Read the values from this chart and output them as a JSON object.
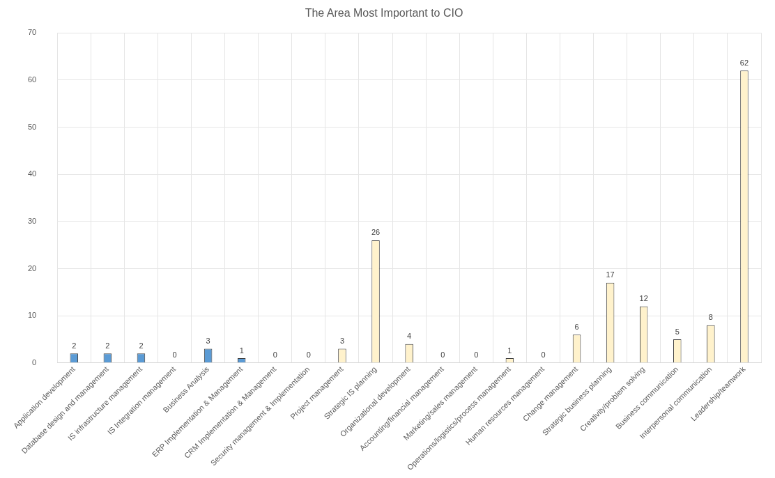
{
  "chart_data": {
    "type": "bar",
    "title": "The Area Most Important to CIO",
    "categories": [
      "Application development",
      "Database design and management",
      "IS infrastructure management",
      "IS Integration management",
      "Business Analysis",
      "ERP Implementation & Management",
      "CRM Implementation & Management",
      "Security management & Implementation",
      "Project management",
      "Strategic IS planning",
      "Organizational development",
      "Accounting/financial management",
      "Marketing/sales management",
      "Operations/logistics/process management",
      "Human resources management",
      "Change management",
      "Strategic business planning",
      "Creativity/problem solving",
      "Business communication",
      "Interpersonal communication",
      "Leadership/teamwork"
    ],
    "values": [
      2,
      2,
      2,
      0,
      3,
      1,
      0,
      0,
      3,
      26,
      4,
      0,
      0,
      1,
      0,
      6,
      17,
      12,
      5,
      8,
      62
    ],
    "colors": [
      "#5b9bd5",
      "#5b9bd5",
      "#5b9bd5",
      "#5b9bd5",
      "#5b9bd5",
      "#5b9bd5",
      "#5b9bd5",
      "#5b9bd5",
      "#fff2cc",
      "#fff2cc",
      "#fff2cc",
      "#fff2cc",
      "#fff2cc",
      "#fff2cc",
      "#fff2cc",
      "#fff2cc",
      "#fff2cc",
      "#fff2cc",
      "#fff2cc",
      "#fff2cc",
      "#fff2cc"
    ],
    "ylim": [
      0,
      70
    ],
    "yticks": [
      0,
      10,
      20,
      30,
      40,
      50,
      60,
      70
    ],
    "grid": true,
    "data_labels": true
  }
}
